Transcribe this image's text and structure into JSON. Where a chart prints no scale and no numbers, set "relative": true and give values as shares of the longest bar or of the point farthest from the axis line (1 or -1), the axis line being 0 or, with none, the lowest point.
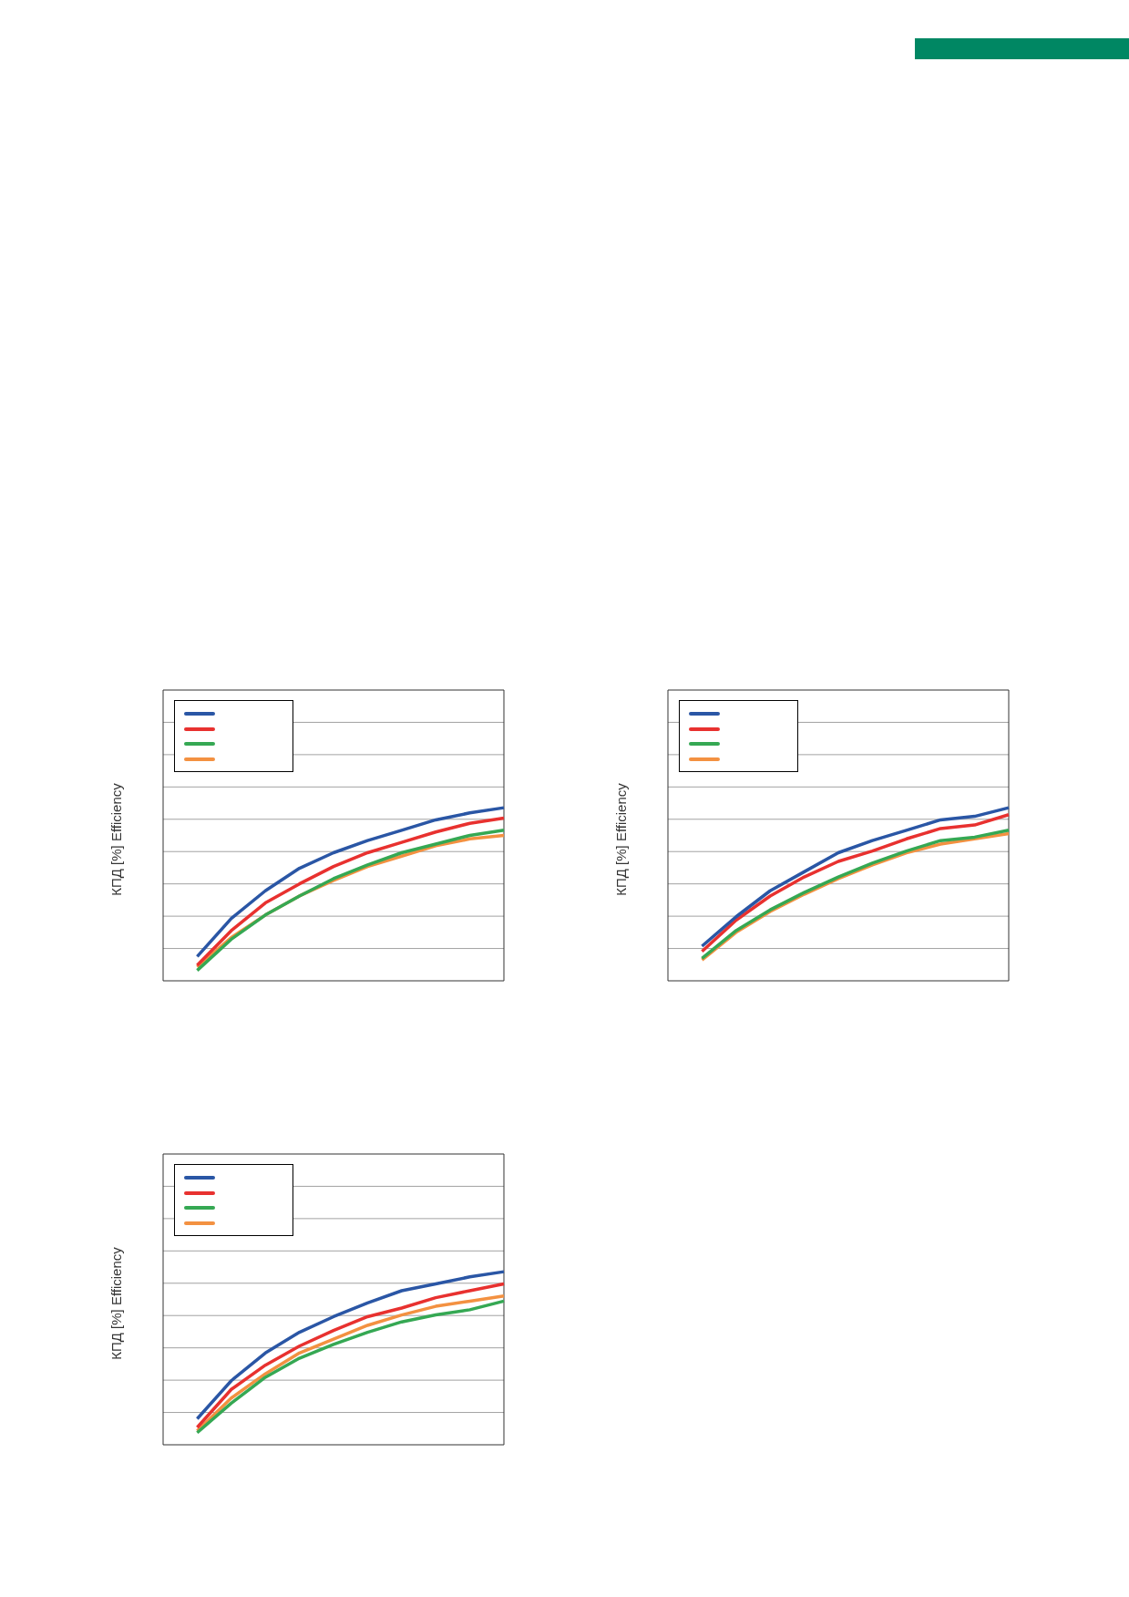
{
  "chart_data": [
    {
      "type": "line",
      "ylabel": "КПД [%] Efficiency",
      "relative": true,
      "grid": "y",
      "marker": "none",
      "categories": [
        null,
        null,
        null,
        null,
        null,
        null,
        null,
        null,
        null,
        null
      ],
      "series": [
        {
          "color": "#2a56a5",
          "values": [
            0.14,
            0.36,
            0.52,
            0.65,
            0.74,
            0.81,
            0.87,
            0.93,
            0.97,
            1
          ]
        },
        {
          "color": "#e8312f",
          "values": [
            0.09,
            0.29,
            0.45,
            0.56,
            0.66,
            0.74,
            0.8,
            0.86,
            0.91,
            0.94
          ]
        },
        {
          "color": "#35a853",
          "values": [
            0.06,
            0.24,
            0.38,
            0.49,
            0.59,
            0.67,
            0.74,
            0.79,
            0.84,
            0.87
          ]
        },
        {
          "color": "#f39141",
          "values": [
            0.08,
            0.25,
            0.38,
            0.49,
            0.58,
            0.66,
            0.72,
            0.78,
            0.82,
            0.84
          ]
        }
      ]
    },
    {
      "type": "line",
      "ylabel": "КПД [%] Efficiency",
      "relative": true,
      "grid": "y",
      "marker": "none",
      "categories": [
        null,
        null,
        null,
        null,
        null,
        null,
        null,
        null,
        null,
        null
      ],
      "series": [
        {
          "color": "#2a56a5",
          "values": [
            0.2,
            0.37,
            0.52,
            0.63,
            0.74,
            0.81,
            0.87,
            0.93,
            0.95,
            1
          ]
        },
        {
          "color": "#e8312f",
          "values": [
            0.17,
            0.35,
            0.49,
            0.6,
            0.69,
            0.75,
            0.82,
            0.88,
            0.9,
            0.96
          ]
        },
        {
          "color": "#35a853",
          "values": [
            0.13,
            0.29,
            0.41,
            0.51,
            0.6,
            0.68,
            0.75,
            0.81,
            0.83,
            0.87
          ]
        },
        {
          "color": "#f39141",
          "values": [
            0.12,
            0.28,
            0.4,
            0.5,
            0.59,
            0.67,
            0.74,
            0.79,
            0.82,
            0.85
          ]
        }
      ]
    },
    {
      "type": "line",
      "ylabel": "КПД [%] Efficiency",
      "relative": true,
      "grid": "y",
      "marker": "none",
      "categories": [
        null,
        null,
        null,
        null,
        null,
        null,
        null,
        null,
        null,
        null
      ],
      "series": [
        {
          "color": "#2a56a5",
          "values": [
            0.15,
            0.37,
            0.53,
            0.65,
            0.74,
            0.82,
            0.89,
            0.93,
            0.97,
            1
          ]
        },
        {
          "color": "#e8312f",
          "values": [
            0.1,
            0.32,
            0.46,
            0.57,
            0.66,
            0.74,
            0.79,
            0.85,
            0.89,
            0.93
          ]
        },
        {
          "color": "#35a853",
          "values": [
            0.07,
            0.24,
            0.39,
            0.5,
            0.58,
            0.65,
            0.71,
            0.75,
            0.78,
            0.83
          ]
        },
        {
          "color": "#f39141",
          "values": [
            0.08,
            0.27,
            0.41,
            0.53,
            0.61,
            0.69,
            0.75,
            0.8,
            0.83,
            0.86
          ]
        }
      ]
    }
  ]
}
